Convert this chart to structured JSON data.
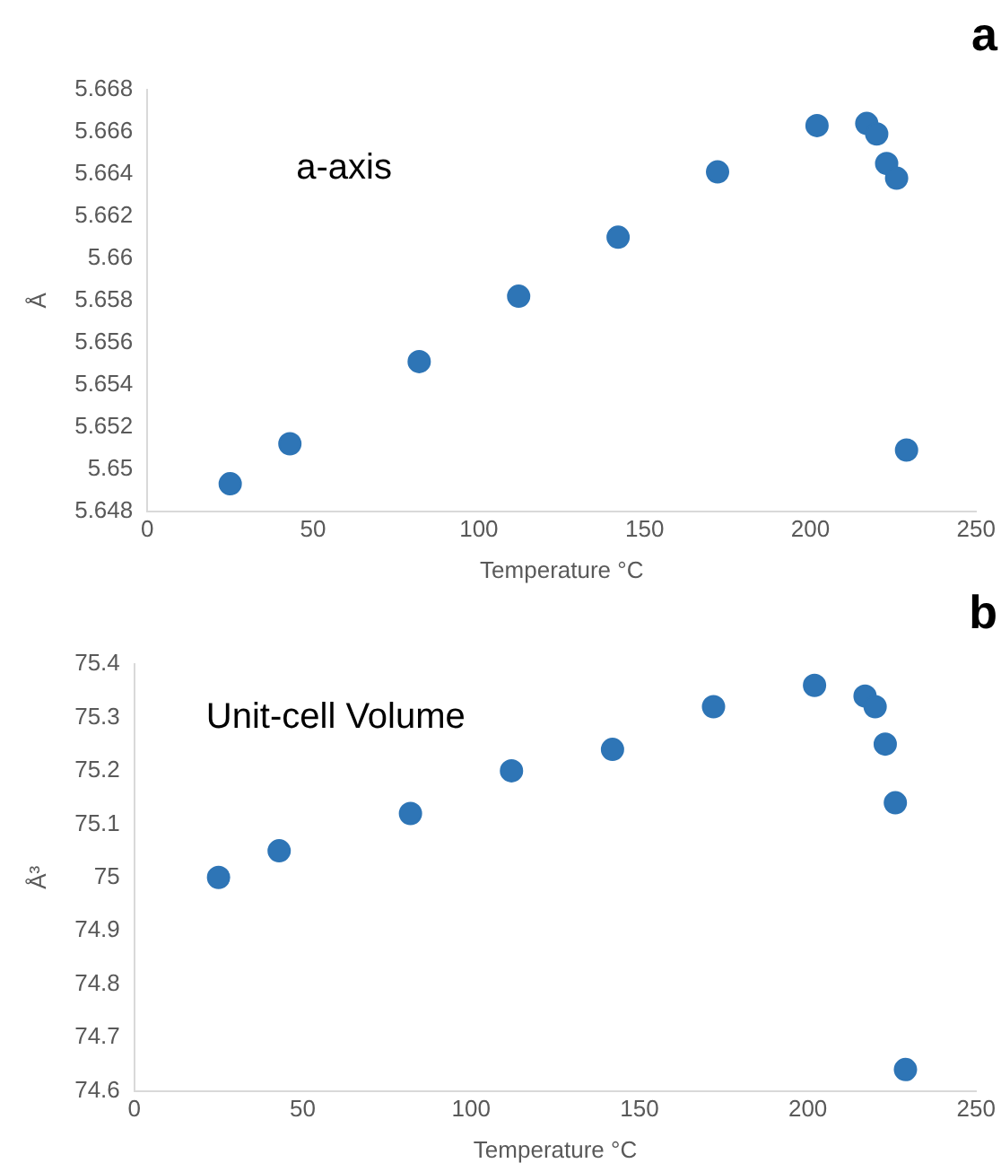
{
  "chart_data": [
    {
      "type": "scatter",
      "annotations": [
        "a",
        "a-axis"
      ],
      "xlabel": "Temperature °C",
      "ylabel": "Å",
      "x": [
        25,
        43,
        82,
        112,
        142,
        172,
        202,
        217,
        220,
        223,
        226,
        229
      ],
      "series": [
        {
          "color": "#2e75b6",
          "values": [
            5.6493,
            5.6512,
            5.6551,
            5.6582,
            5.661,
            5.6641,
            5.6663,
            5.6664,
            5.6659,
            5.6645,
            5.6638,
            5.6509
          ]
        }
      ],
      "xlim": [
        0,
        250
      ],
      "xticks": [
        0,
        50,
        100,
        150,
        200,
        250
      ],
      "ylim": [
        5.648,
        5.668
      ],
      "yticks": [
        {
          "value": 5.648,
          "label": "5.648"
        },
        {
          "value": 5.65,
          "label": "5.65"
        },
        {
          "value": 5.652,
          "label": "5.652"
        },
        {
          "value": 5.654,
          "label": "5.654"
        },
        {
          "value": 5.656,
          "label": "5.656"
        },
        {
          "value": 5.658,
          "label": "5.658"
        },
        {
          "value": 5.66,
          "label": "5.66"
        },
        {
          "value": 5.662,
          "label": "5.662"
        },
        {
          "value": 5.664,
          "label": "5.664"
        },
        {
          "value": 5.666,
          "label": "5.666"
        },
        {
          "value": 5.668,
          "label": "5.668"
        }
      ],
      "grid": false,
      "legend": false,
      "marker": "circle"
    },
    {
      "type": "scatter",
      "annotations": [
        "b",
        "Unit-cell Volume"
      ],
      "xlabel": "Temperature °C",
      "ylabel": "Å³",
      "x": [
        25,
        43,
        82,
        112,
        142,
        172,
        202,
        217,
        220,
        223,
        226,
        229
      ],
      "series": [
        {
          "color": "#2e75b6",
          "values": [
            75.0,
            75.05,
            75.12,
            75.2,
            75.24,
            75.32,
            75.36,
            75.34,
            75.32,
            75.25,
            75.14,
            74.64
          ]
        }
      ],
      "xlim": [
        0,
        250
      ],
      "xticks": [
        0,
        50,
        100,
        150,
        200,
        250
      ],
      "ylim": [
        74.6,
        75.4
      ],
      "yticks": [
        {
          "value": 74.6,
          "label": "74.6"
        },
        {
          "value": 74.7,
          "label": "74.7"
        },
        {
          "value": 74.8,
          "label": "74.8"
        },
        {
          "value": 74.9,
          "label": "74.9"
        },
        {
          "value": 75,
          "label": "75"
        },
        {
          "value": 75.1,
          "label": "75.1"
        },
        {
          "value": 75.2,
          "label": "75.2"
        },
        {
          "value": 75.3,
          "label": "75.3"
        },
        {
          "value": 75.4,
          "label": "75.4"
        }
      ],
      "grid": false,
      "legend": false,
      "marker": "circle"
    }
  ]
}
